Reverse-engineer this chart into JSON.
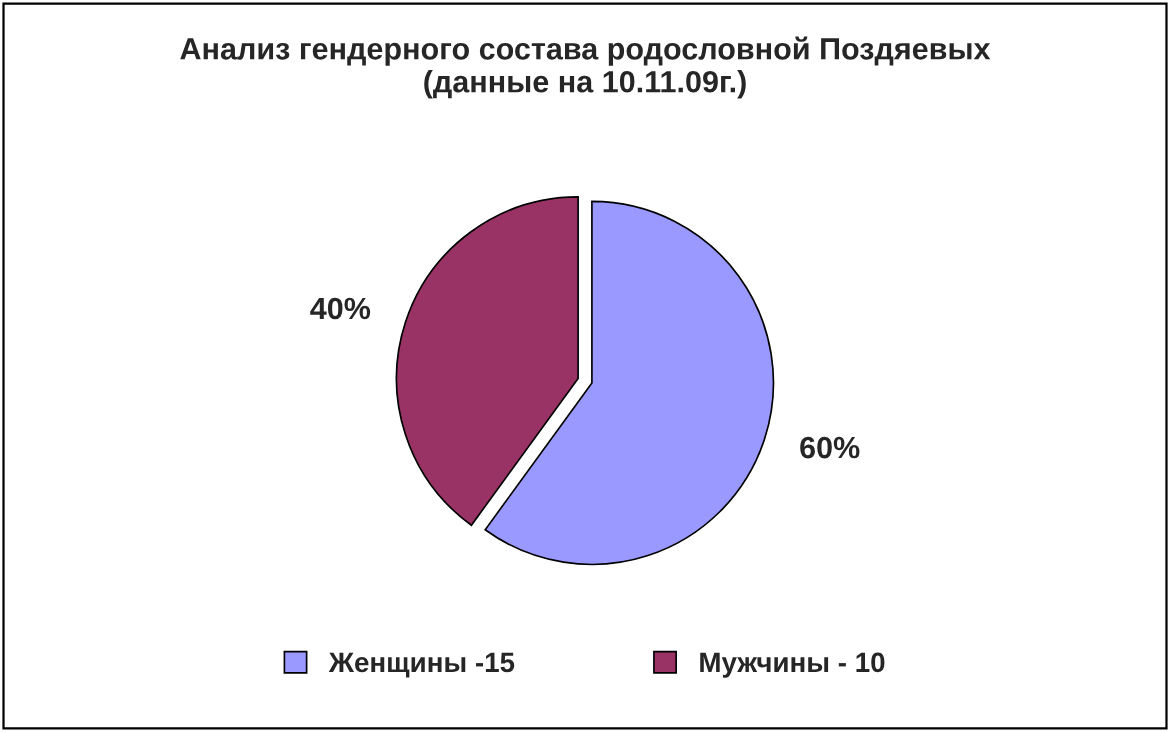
{
  "chart_data": {
    "type": "pie",
    "title": "Анализ гендерного состава родословной Поздяевых\n(данные на 10.11.09г.)",
    "categories": [
      "Женщины -15",
      "Мужчины - 10"
    ],
    "values": [
      60,
      40
    ],
    "colors": [
      "#9999ff",
      "#993366"
    ],
    "value_labels": [
      "60%",
      "40%"
    ],
    "legend": "bottom"
  }
}
